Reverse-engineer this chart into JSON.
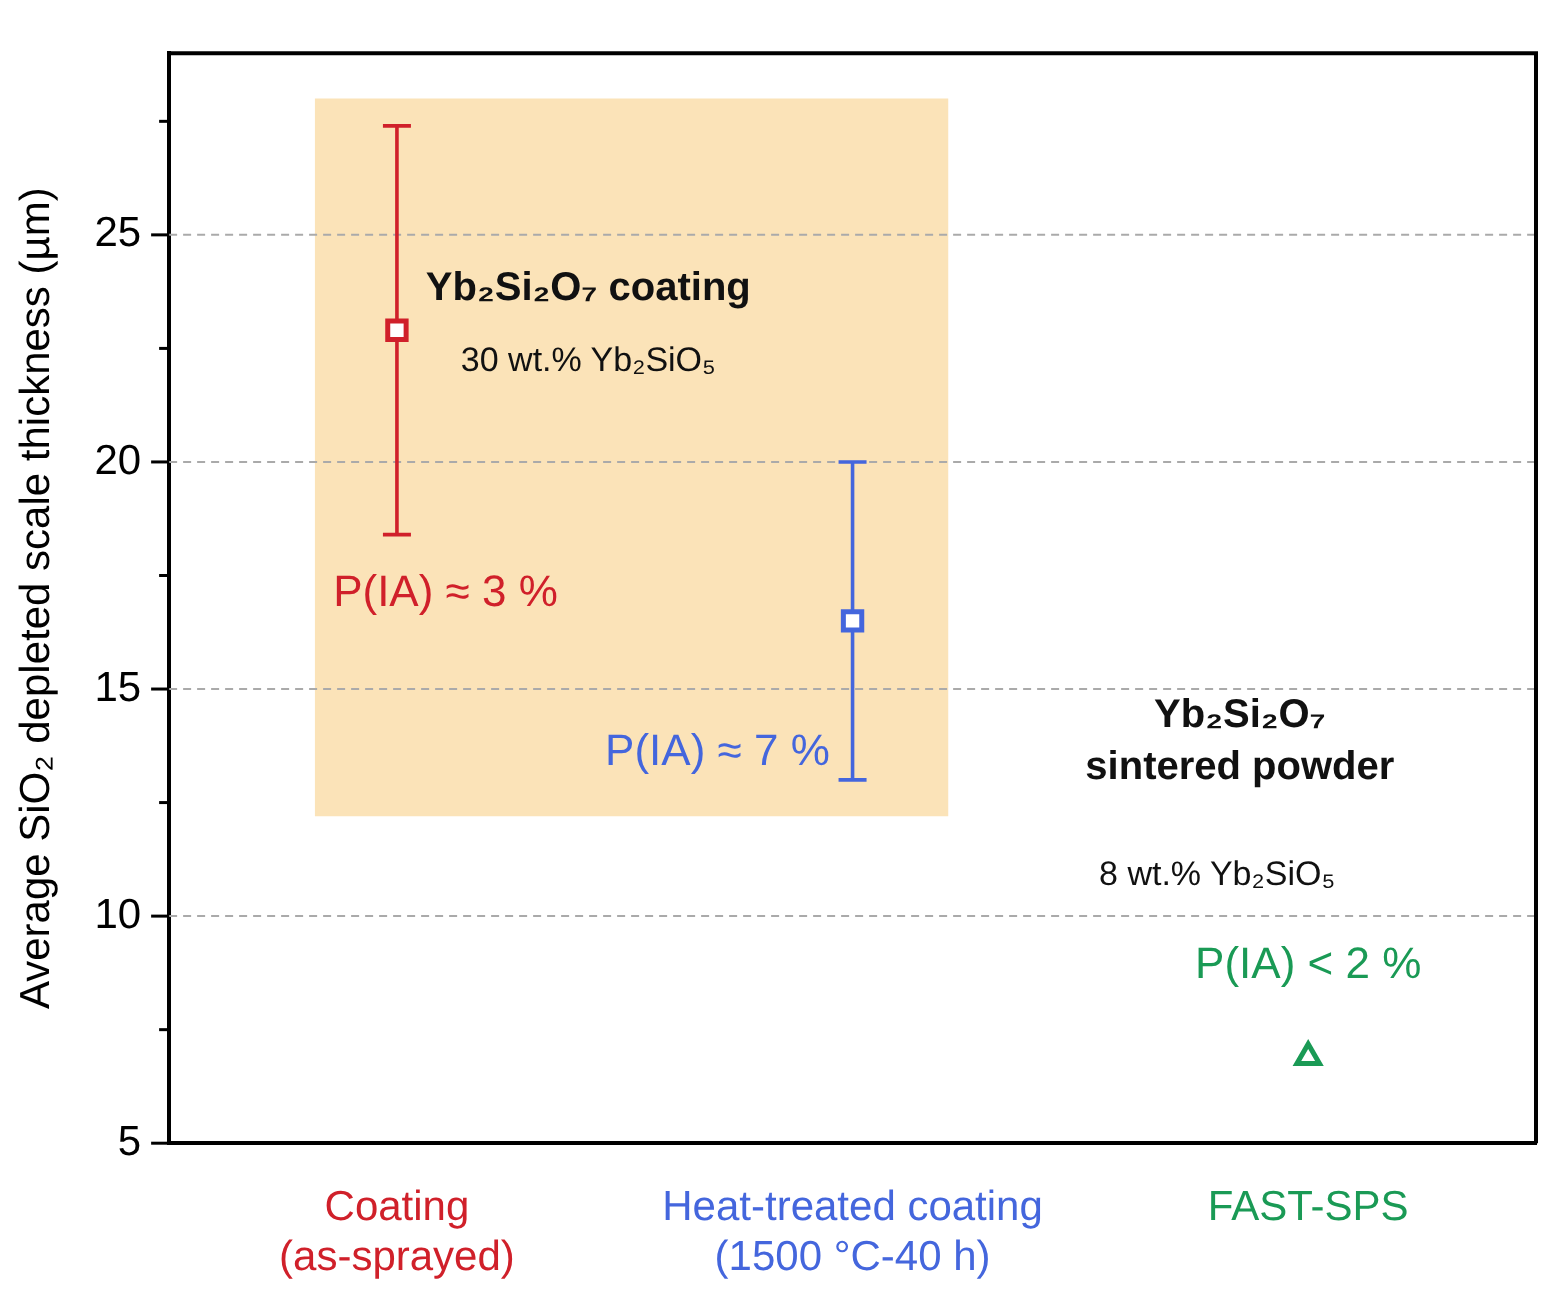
{
  "chart_data": {
    "type": "scatter",
    "ylabel": "Average SiO₂ depleted scale thickness (µm)",
    "categories": [
      "Coating\n(as-sprayed)",
      "Heat-treated coating\n(1500 °C-40 h)",
      "FAST-SPS"
    ],
    "series": [
      {
        "color": "#d0202a",
        "marker": "square",
        "values": [
          22.9,
          null,
          null
        ],
        "errors": [
          [
            18.4,
            27.4
          ],
          null,
          null
        ]
      },
      {
        "color": "#4466dd",
        "marker": "square",
        "values": [
          null,
          16.5,
          null
        ],
        "errors": [
          null,
          [
            13.0,
            20.0
          ],
          null
        ]
      },
      {
        "color": "#1a9a55",
        "marker": "triangle",
        "values": [
          null,
          null,
          6.9
        ]
      }
    ],
    "ylim": [
      5,
      29
    ],
    "yticks": [
      5,
      {
        "value": 7.5,
        "label": null
      },
      10,
      {
        "value": 12.5,
        "label": null
      },
      15,
      {
        "value": 17.5,
        "label": null
      },
      20,
      {
        "value": 22.5,
        "label": null
      },
      25,
      {
        "value": 27.5,
        "label": null
      }
    ],
    "grid": "y",
    "legend": false,
    "bands": [
      {
        "axis": "y",
        "from": 12.2,
        "to": 28.0,
        "color": "#fbe3b8"
      }
    ],
    "annotations": [
      "P(IA) ≈ 3 %",
      "P(IA) ≈ 7 %",
      "P(IA) < 2 %",
      "Yb₂Si₂O₇ coating",
      "30 wt.% Yb₂SiO₅",
      "Yb₂Si₂O₇\nsintered powder",
      "8 wt.% Yb₂SiO₅"
    ]
  }
}
